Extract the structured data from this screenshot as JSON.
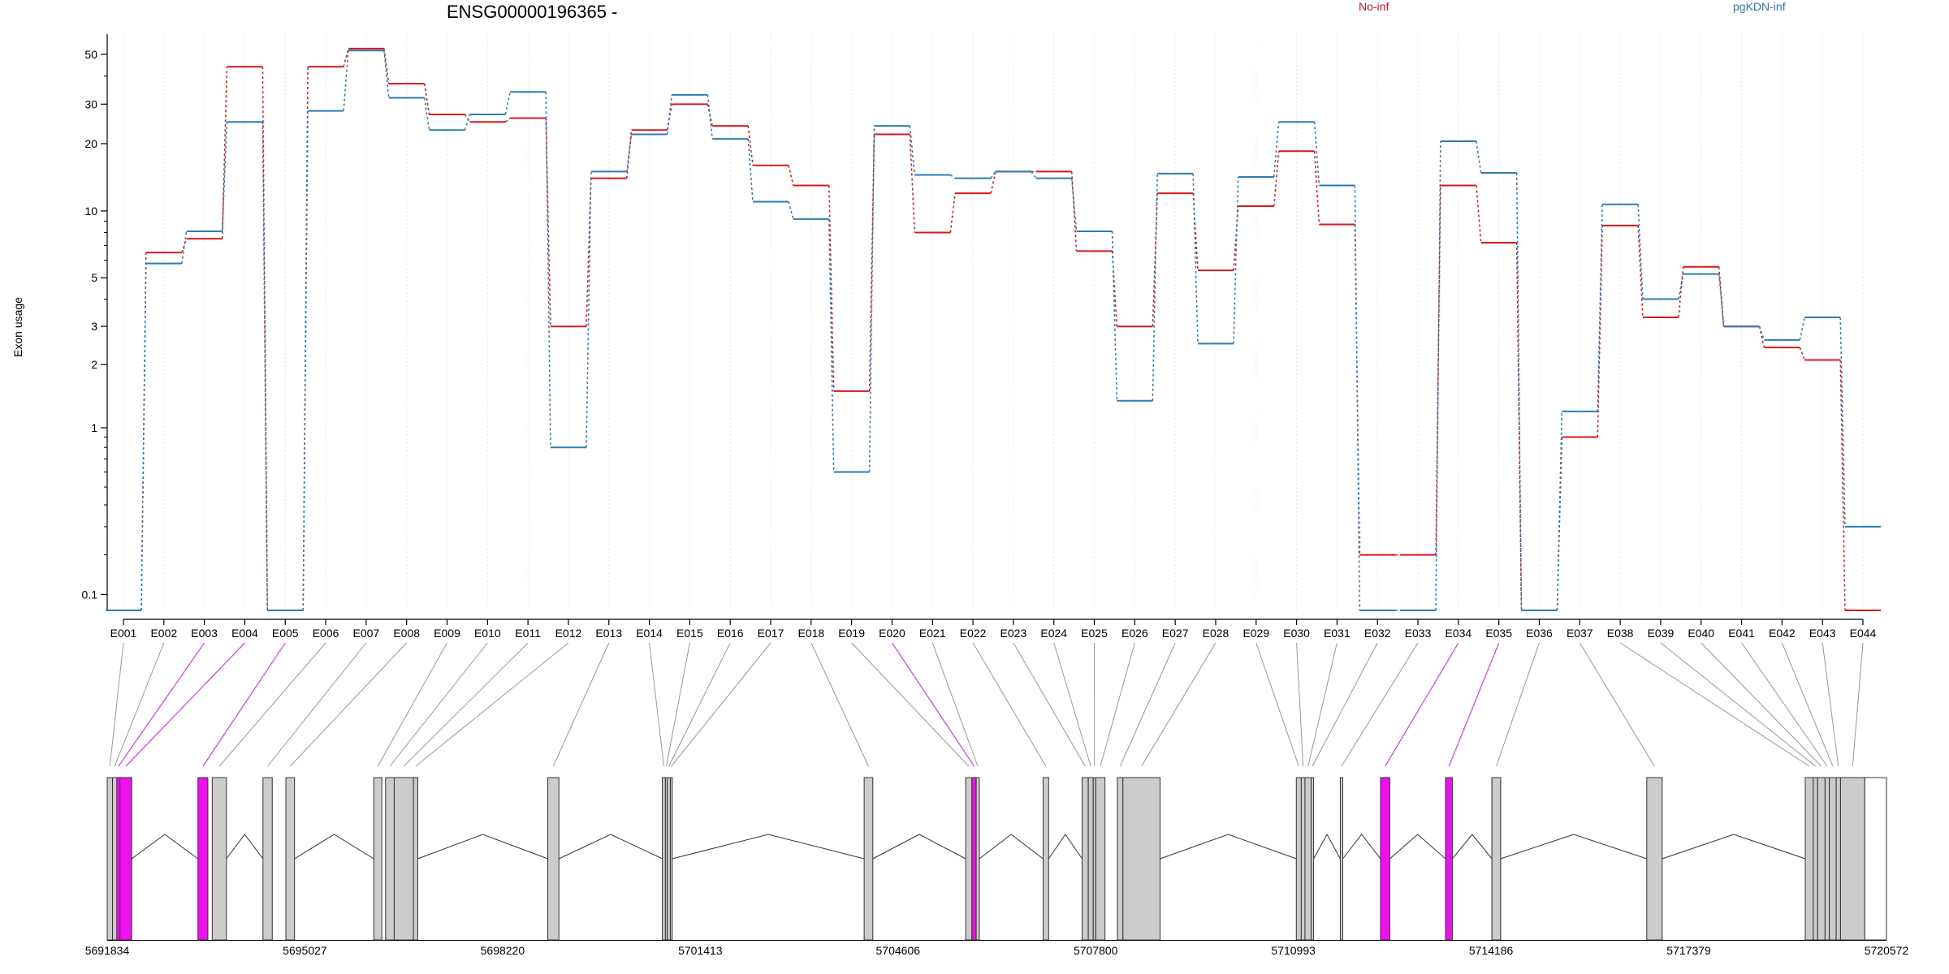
{
  "chart_data": {
    "type": "line",
    "title": "ENSG00000196365 -",
    "ylabel": "Exon usage",
    "yscale": "log(x+0.1)",
    "ylim": [
      0.07,
      60
    ],
    "yticks": [
      0.1,
      1,
      2,
      3,
      5,
      10,
      20,
      30,
      50
    ],
    "ytick_labels": [
      "0.1",
      "1",
      "2",
      "3",
      "5",
      "10",
      "20",
      "30",
      "50"
    ],
    "categories": [
      "E001",
      "E002",
      "E003",
      "E004",
      "E005",
      "E006",
      "E007",
      "E008",
      "E009",
      "E010",
      "E011",
      "E012",
      "E013",
      "E014",
      "E015",
      "E016",
      "E017",
      "E018",
      "E019",
      "E020",
      "E021",
      "E022",
      "E023",
      "E024",
      "E025",
      "E026",
      "E027",
      "E028",
      "E029",
      "E030",
      "E031",
      "E032",
      "E033",
      "E034",
      "E035",
      "E036",
      "E037",
      "E038",
      "E039",
      "E040",
      "E041",
      "E042",
      "E043",
      "E044"
    ],
    "series": [
      {
        "name": "No-inf",
        "color": "#d7191c",
        "values": [
          0.07,
          6.5,
          7.5,
          44,
          0.07,
          44,
          53,
          37,
          27,
          25,
          26,
          3,
          14,
          23,
          30,
          24,
          16,
          13,
          1.5,
          22,
          8,
          12,
          15,
          15,
          6.6,
          3,
          12,
          5.4,
          10.5,
          18.5,
          8.7,
          0.2,
          0.2,
          13,
          7.2,
          0.07,
          0.9,
          8.6,
          3.3,
          5.6,
          3,
          2.4,
          2.1,
          0.07
        ]
      },
      {
        "name": "pgKDN-inf",
        "color": "#2c7bb6",
        "values": [
          0.07,
          5.8,
          8.1,
          25,
          0.07,
          28,
          52,
          32,
          23,
          27,
          34,
          0.8,
          15,
          22,
          33,
          21,
          11,
          9.2,
          0.6,
          24,
          14.5,
          14,
          15,
          14,
          8.1,
          1.35,
          14.7,
          2.5,
          14.2,
          25,
          13,
          0.07,
          0.07,
          20.5,
          14.8,
          0.07,
          1.2,
          10.7,
          4,
          5.2,
          3,
          2.6,
          3.3,
          0.3
        ]
      }
    ],
    "genomic_axis": {
      "ticks": [
        "5691834",
        "5695027",
        "5698220",
        "5701413",
        "5704606",
        "5707800",
        "5710993",
        "5714186",
        "5717379",
        "5720572"
      ],
      "start": 5691834,
      "end": 5720572
    },
    "gene_model": {
      "highlight_color": "#ee11ee",
      "exon_color": "#cccccc",
      "exons": [
        {
          "id": "E001",
          "start": 5691834,
          "end": 5691920,
          "hl": false
        },
        {
          "id": "E002",
          "start": 5691920,
          "end": 5691990,
          "hl": false
        },
        {
          "id": "E003",
          "start": 5691990,
          "end": 5692040,
          "hl": true
        },
        {
          "id": "E004",
          "start": 5692040,
          "end": 5692230,
          "hl": true
        },
        {
          "id": "E005",
          "start": 5693300,
          "end": 5693460,
          "hl": true
        },
        {
          "id": "E006",
          "start": 5693530,
          "end": 5693760,
          "hl": false
        },
        {
          "id": "E007",
          "start": 5694350,
          "end": 5694500,
          "hl": false
        },
        {
          "id": "E008",
          "start": 5694720,
          "end": 5694860,
          "hl": false
        },
        {
          "id": "E009",
          "start": 5696140,
          "end": 5696270,
          "hl": false
        },
        {
          "id": "E010",
          "start": 5696330,
          "end": 5696470,
          "hl": false
        },
        {
          "id": "E011",
          "start": 5696470,
          "end": 5696780,
          "hl": false
        },
        {
          "id": "E012",
          "start": 5696780,
          "end": 5696850,
          "hl": false
        },
        {
          "id": "E013",
          "start": 5698950,
          "end": 5699130,
          "hl": false
        },
        {
          "id": "E014",
          "start": 5700800,
          "end": 5700850,
          "hl": false
        },
        {
          "id": "E015",
          "start": 5700850,
          "end": 5700880,
          "hl": false
        },
        {
          "id": "E016",
          "start": 5700880,
          "end": 5700930,
          "hl": false
        },
        {
          "id": "E017",
          "start": 5700930,
          "end": 5700960,
          "hl": false
        },
        {
          "id": "E018",
          "start": 5704060,
          "end": 5704200,
          "hl": false
        },
        {
          "id": "E019",
          "start": 5705700,
          "end": 5705800,
          "hl": false
        },
        {
          "id": "E020",
          "start": 5705800,
          "end": 5705870,
          "hl": true
        },
        {
          "id": "E021",
          "start": 5705870,
          "end": 5705920,
          "hl": false
        },
        {
          "id": "E022",
          "start": 5706950,
          "end": 5707040,
          "hl": false
        },
        {
          "id": "E023",
          "start": 5707580,
          "end": 5707680,
          "hl": false
        },
        {
          "id": "E024",
          "start": 5707680,
          "end": 5707760,
          "hl": false
        },
        {
          "id": "E025",
          "start": 5707760,
          "end": 5707800,
          "hl": false
        },
        {
          "id": "E026",
          "start": 5707800,
          "end": 5707950,
          "hl": false
        },
        {
          "id": "E027",
          "start": 5708150,
          "end": 5708240,
          "hl": false
        },
        {
          "id": "E028",
          "start": 5708240,
          "end": 5708840,
          "hl": false
        },
        {
          "id": "E029",
          "start": 5711040,
          "end": 5711120,
          "hl": false
        },
        {
          "id": "E030",
          "start": 5711120,
          "end": 5711180,
          "hl": false
        },
        {
          "id": "E031",
          "start": 5711180,
          "end": 5711280,
          "hl": false
        },
        {
          "id": "E032",
          "start": 5711280,
          "end": 5711320,
          "hl": false
        },
        {
          "id": "E033",
          "start": 5711750,
          "end": 5711790,
          "hl": false
        },
        {
          "id": "E034",
          "start": 5712400,
          "end": 5712550,
          "hl": true
        },
        {
          "id": "E035",
          "start": 5713450,
          "end": 5713560,
          "hl": true
        },
        {
          "id": "E036",
          "start": 5714200,
          "end": 5714340,
          "hl": false
        },
        {
          "id": "E037",
          "start": 5716700,
          "end": 5716950,
          "hl": false
        },
        {
          "id": "E038",
          "start": 5719260,
          "end": 5719390,
          "hl": false
        },
        {
          "id": "E039",
          "start": 5719390,
          "end": 5719460,
          "hl": false
        },
        {
          "id": "E040",
          "start": 5719460,
          "end": 5719580,
          "hl": false
        },
        {
          "id": "E041",
          "start": 5719580,
          "end": 5719650,
          "hl": false
        },
        {
          "id": "E042",
          "start": 5719650,
          "end": 5719760,
          "hl": false
        },
        {
          "id": "E043",
          "start": 5719760,
          "end": 5719830,
          "hl": false
        },
        {
          "id": "E044",
          "start": 5719830,
          "end": 5720220,
          "hl": false
        }
      ],
      "utr_blocks": [
        {
          "start": 5714200,
          "end": 5714340
        },
        {
          "start": 5720220,
          "end": 5720572
        }
      ]
    }
  }
}
